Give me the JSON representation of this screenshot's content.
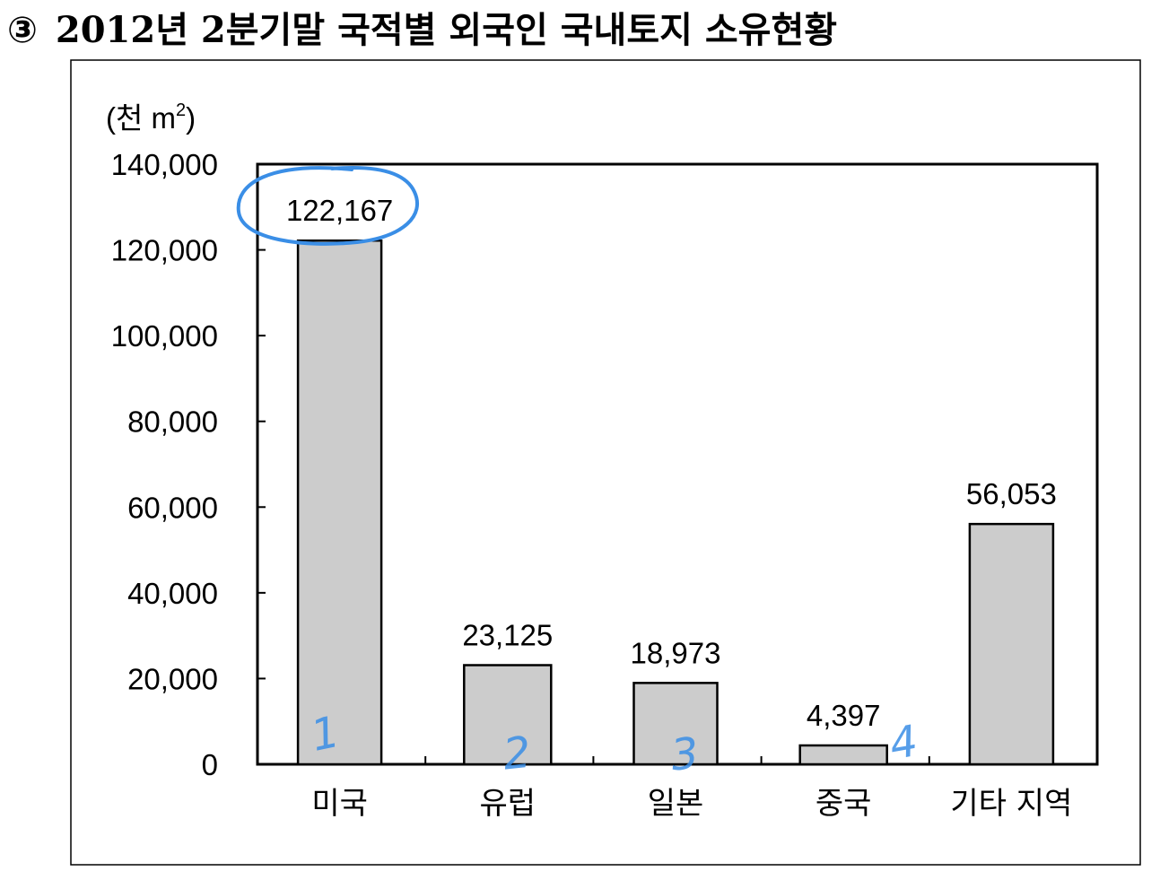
{
  "heading": {
    "number": "③",
    "text": "2012년 2분기말 국적별 외국인 국내토지 소유현황"
  },
  "colors": {
    "bar_fill": "#cccccc",
    "bar_stroke": "#000000",
    "annotation": "#3a8ee6"
  },
  "chart_data": {
    "type": "bar",
    "title": "",
    "unit_label": {
      "prefix": "(천 m",
      "superscript": "2",
      "suffix": ")"
    },
    "xlabel": "",
    "ylabel": "",
    "categories": [
      "미국",
      "유럽",
      "일본",
      "중국",
      "기타 지역"
    ],
    "values": [
      122167,
      23125,
      18973,
      4397,
      56053
    ],
    "data_labels": [
      "122,167",
      "23,125",
      "18,973",
      "4,397",
      "56,053"
    ],
    "ylim": [
      0,
      140000
    ],
    "yticks": [
      0,
      20000,
      40000,
      60000,
      80000,
      100000,
      120000,
      140000
    ],
    "ytick_labels": [
      "0",
      "20,000",
      "40,000",
      "60,000",
      "80,000",
      "100,000",
      "120,000",
      "140,000"
    ],
    "grid": false,
    "legend": "none",
    "annotations": {
      "handwritten_numbers": [
        "1",
        "2",
        "3",
        "4"
      ],
      "circled_label": "122,167"
    }
  }
}
